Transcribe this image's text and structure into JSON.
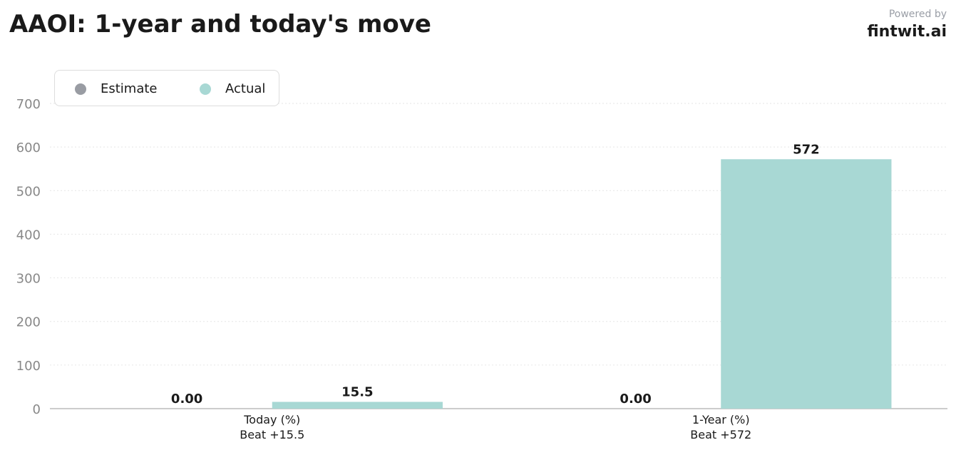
{
  "header": {
    "title": "AAOI: 1-year and today's move",
    "powered_by": "Powered by",
    "brand": "fintwit.ai"
  },
  "colors": {
    "estimate": "#999ca3",
    "actual": "#a8d8d4",
    "grid": "#e6e6e6",
    "axis": "#bbbbbb",
    "tick_text": "#888888",
    "label_text": "#1a1a1a"
  },
  "chart_data": {
    "type": "bar",
    "categories": [
      "Today (%)",
      "1-Year (%)"
    ],
    "sublabels": [
      "Beat +15.5",
      "Beat +572"
    ],
    "series": [
      {
        "name": "Estimate",
        "values": [
          0,
          0
        ],
        "labels": [
          "0.00",
          "0.00"
        ]
      },
      {
        "name": "Actual",
        "values": [
          15.5,
          572
        ],
        "labels": [
          "15.5",
          "572"
        ]
      }
    ],
    "ylim": [
      0,
      700
    ],
    "yticks": [
      0,
      100,
      200,
      300,
      400,
      500,
      600,
      700
    ],
    "grid": true,
    "legend_position": "top-left"
  }
}
